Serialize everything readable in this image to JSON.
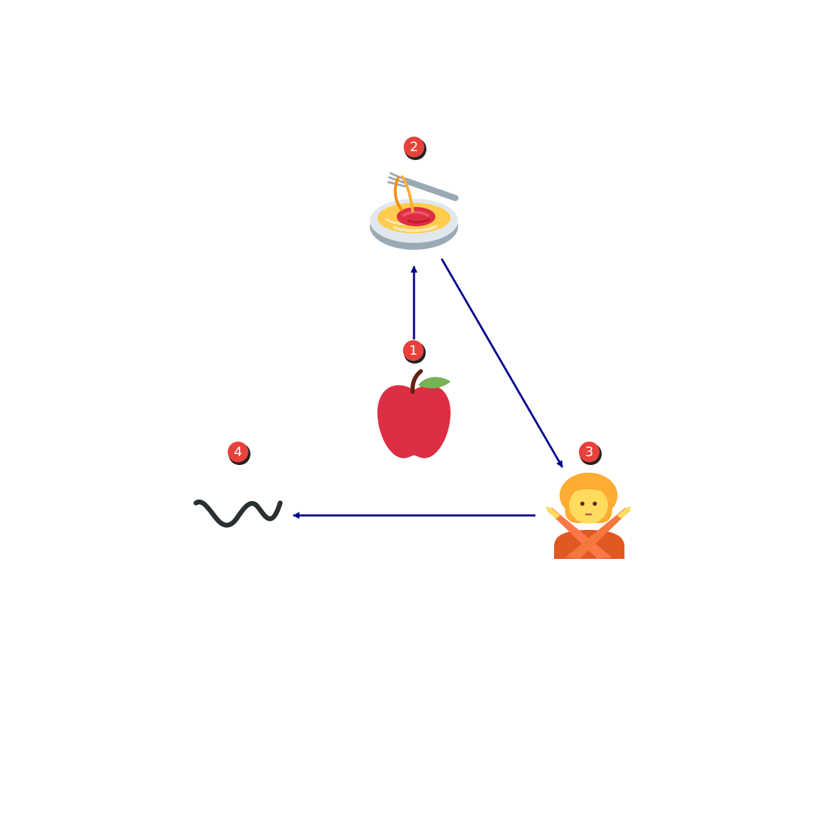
{
  "diagram": {
    "colors": {
      "arrow": "#00008b",
      "badge_fill": "#e8413c",
      "badge_shadow": "#222222",
      "badge_text": "#ffffff"
    },
    "nodes": [
      {
        "id": "apple",
        "badge": "1",
        "icon": "red-apple-icon"
      },
      {
        "id": "spaghetti",
        "badge": "2",
        "icon": "spaghetti-icon"
      },
      {
        "id": "person",
        "badge": "3",
        "icon": "person-gesturing-no-icon"
      },
      {
        "id": "wave",
        "badge": "4",
        "icon": "wavy-dash-icon"
      }
    ],
    "edges": [
      {
        "from": "apple",
        "to": "spaghetti"
      },
      {
        "from": "spaghetti",
        "to": "person"
      },
      {
        "from": "person",
        "to": "wave"
      }
    ]
  }
}
